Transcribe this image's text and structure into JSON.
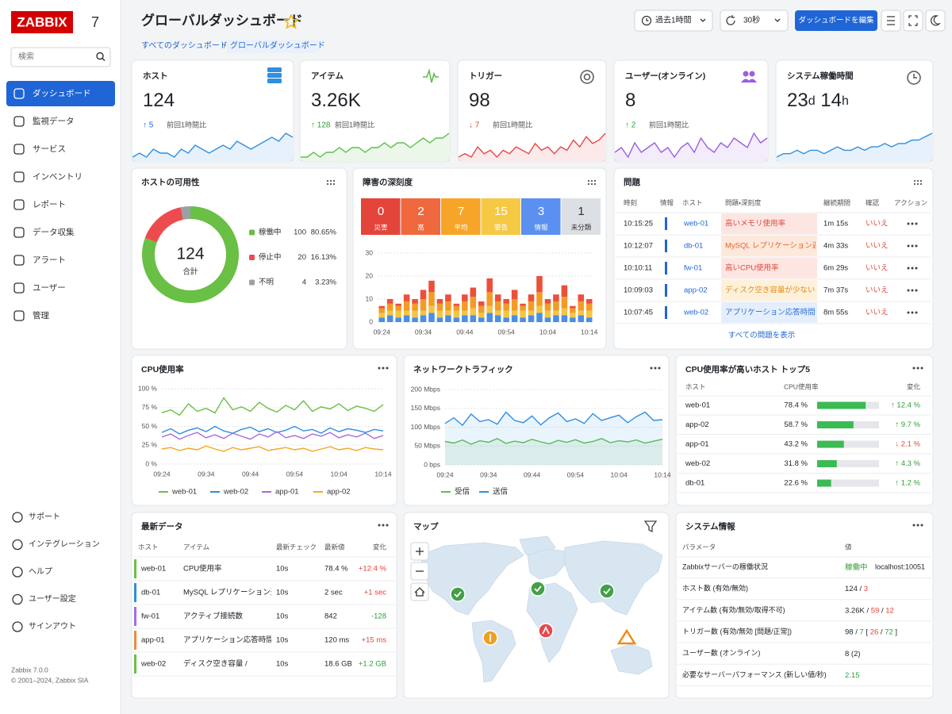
{
  "sidebar": {
    "logo": "ZABBIX",
    "version_badge": "7",
    "search_placeholder": "検索",
    "nav": [
      "ダッシュボード",
      "監視データ",
      "サービス",
      "インベントリ",
      "レポート",
      "データ収集",
      "アラート",
      "ユーザー",
      "管理"
    ],
    "active": 0,
    "bottom_nav": [
      "サポート",
      "インテグレーション",
      "ヘルプ",
      "ユーザー設定",
      "サインアウト"
    ],
    "footer": [
      "Zabbix 7.0.0",
      "© 2001–2024, Zabbix SIA"
    ]
  },
  "header": {
    "title": "グローバルダッシュボード",
    "breadcrumbs": [
      "すべてのダッシュボード",
      "グローバルダッシュボード"
    ],
    "breadcrumb_separator": "/",
    "time_range": "過去1時間",
    "refresh": "30秒",
    "edit_button": "ダッシュボードを編集"
  },
  "stats": [
    {
      "title": "ホスト",
      "value_parts": [
        {
          "text": "124"
        }
      ],
      "delta": "↑ 5",
      "delta_color": "#1f65d6",
      "note": "前回1時間比",
      "color": "#2f8fe0",
      "spark": [
        4,
        5,
        4,
        6,
        5,
        5,
        4,
        6,
        5,
        7,
        6,
        5,
        6,
        7,
        6,
        8,
        7,
        6,
        7,
        8,
        9,
        8,
        10,
        9
      ]
    },
    {
      "title": "アイテム",
      "value_parts": [
        {
          "text": "3.26K"
        }
      ],
      "delta": "↑ 128",
      "delta_color": "#2e9e3a",
      "note": "前回1時間比",
      "color": "#5cbf4a",
      "spark": [
        3,
        3,
        4,
        3,
        4,
        4,
        5,
        4,
        5,
        5,
        4,
        5,
        5,
        6,
        5,
        6,
        6,
        5,
        6,
        7,
        6,
        7,
        7,
        8
      ]
    },
    {
      "title": "トリガー",
      "value_parts": [
        {
          "text": "98"
        }
      ],
      "delta": "↓ 7",
      "delta_color": "#e0453a",
      "note": "前回1時間比",
      "color": "#e8474a",
      "spark": [
        3,
        4,
        3,
        6,
        4,
        5,
        3,
        5,
        4,
        6,
        5,
        4,
        7,
        5,
        6,
        4,
        6,
        5,
        8,
        6,
        9,
        7,
        8,
        10
      ]
    },
    {
      "title": "ユーザー(オンライン)",
      "value_parts": [
        {
          "text": "8"
        }
      ],
      "delta": "↑ 2",
      "delta_color": "#2e9e3a",
      "note": "前回1時間比",
      "color": "#9b5fe0",
      "spark": [
        4,
        5,
        3,
        6,
        4,
        5,
        6,
        4,
        5,
        3,
        5,
        6,
        4,
        7,
        5,
        4,
        6,
        5,
        7,
        6,
        5,
        8,
        6,
        7
      ]
    },
    {
      "title": "システム稼働時間",
      "value_parts": [
        {
          "text": "23"
        },
        {
          "text": "d",
          "small": true
        },
        {
          "text": " 14"
        },
        {
          "text": "h",
          "small": true
        }
      ],
      "color": "#2f8fe0",
      "spark": [
        3,
        4,
        4,
        5,
        4,
        5,
        5,
        4,
        5,
        6,
        5,
        5,
        6,
        5,
        6,
        6,
        7,
        6,
        7,
        7,
        8,
        8,
        9,
        10
      ]
    }
  ],
  "availability": {
    "title": "ホストの可用性",
    "total": "124",
    "total_label": "合計",
    "items": [
      {
        "label": "稼働中",
        "count": 100,
        "percent": "80.65%",
        "color": "#6abf45"
      },
      {
        "label": "停止中",
        "count": 20,
        "percent": "16.13%",
        "color": "#ee4b4f"
      },
      {
        "label": "不明",
        "count": 4,
        "percent": "3.23%",
        "color": "#9aa0a6"
      }
    ]
  },
  "severity": {
    "title": "障害の深刻度",
    "levels": [
      {
        "count": 0,
        "label": "災害",
        "color": "#e3453b"
      },
      {
        "count": 2,
        "label": "高",
        "color": "#f0683d"
      },
      {
        "count": 7,
        "label": "平均",
        "color": "#f7a528"
      },
      {
        "count": 15,
        "label": "警告",
        "color": "#f6c945"
      },
      {
        "count": 3,
        "label": "情報",
        "color": "#5b8ff0"
      },
      {
        "count": 1,
        "label": "未分類",
        "color": "#dcdfe4"
      }
    ],
    "chart": {
      "type": "bar",
      "categories": [
        "09:24",
        null,
        null,
        null,
        null,
        "09:34",
        null,
        null,
        null,
        null,
        "09:44",
        null,
        null,
        null,
        null,
        "09:54",
        null,
        null,
        null,
        null,
        "10:04",
        null,
        null,
        null,
        null,
        "10:14"
      ],
      "series": [
        {
          "color": "#4a8fe6",
          "values": [
            2,
            3,
            2,
            3,
            2,
            3,
            4,
            2,
            3,
            2,
            3,
            3,
            2,
            4,
            3,
            2,
            3,
            2,
            3,
            4,
            2,
            3,
            3,
            2,
            3,
            2
          ]
        },
        {
          "color": "#f5c542",
          "values": [
            2,
            2,
            3,
            2,
            3,
            2,
            3,
            3,
            2,
            3,
            2,
            3,
            2,
            3,
            2,
            3,
            2,
            3,
            2,
            3,
            3,
            2,
            3,
            2,
            2,
            3
          ]
        },
        {
          "color": "#f59a26",
          "values": [
            2,
            3,
            2,
            4,
            3,
            5,
            6,
            3,
            4,
            2,
            4,
            5,
            3,
            6,
            4,
            3,
            5,
            2,
            4,
            6,
            3,
            4,
            5,
            2,
            4,
            3
          ]
        },
        {
          "color": "#ec4f3a",
          "values": [
            1,
            2,
            1,
            3,
            2,
            4,
            5,
            2,
            3,
            1,
            3,
            4,
            2,
            6,
            3,
            2,
            4,
            1,
            3,
            7,
            2,
            3,
            5,
            1,
            3,
            2
          ]
        }
      ],
      "ylim": [
        0,
        30
      ],
      "yticks": [
        0,
        10,
        20,
        30
      ]
    }
  },
  "problems": {
    "title": "問題",
    "columns": [
      "時刻",
      "情報",
      "ホスト",
      "問題・深刻度",
      "継続期間",
      "確認",
      "アクション"
    ],
    "rows": [
      {
        "time": "10:15:25",
        "host": "web-01",
        "problem": "高いメモリ使用率",
        "bg": "#fde6e2",
        "color": "#e0453a",
        "duration": "1m 15s",
        "ack": "いいえ"
      },
      {
        "time": "10:12:07",
        "host": "db-01",
        "problem": "MySQL レプリケーション遅延",
        "bg": "#fde9dc",
        "color": "#e8642c",
        "duration": "4m 33s",
        "ack": "いいえ"
      },
      {
        "time": "10:10:11",
        "host": "fw-01",
        "problem": "高いCPU使用率",
        "bg": "#fde6e2",
        "color": "#e0453a",
        "duration": "6m 29s",
        "ack": "いいえ"
      },
      {
        "time": "10:09:03",
        "host": "app-02",
        "problem": "ディスク空き容量が少ない /",
        "bg": "#fef1dc",
        "color": "#e58a12",
        "duration": "7m 37s",
        "ack": "いいえ"
      },
      {
        "time": "10:07:45",
        "host": "web-02",
        "problem": "アプリケーション応答時間",
        "bg": "#e4eefc",
        "color": "#2f6fd6",
        "duration": "8m 55s",
        "ack": "いいえ"
      }
    ],
    "footer": "すべての問題を表示"
  },
  "cpu": {
    "title": "CPU使用率",
    "chart": {
      "type": "line",
      "categories": [
        "09:24",
        null,
        null,
        null,
        null,
        "09:34",
        null,
        null,
        null,
        null,
        "09:44",
        null,
        null,
        null,
        null,
        "09:54",
        null,
        null,
        null,
        null,
        "10:04",
        null,
        null,
        null,
        null,
        "10:14"
      ],
      "series": [
        {
          "name": "web-01",
          "color": "#6abf45",
          "values": [
            68,
            72,
            65,
            80,
            70,
            74,
            68,
            88,
            72,
            76,
            70,
            82,
            74,
            69,
            78,
            72,
            84,
            70,
            76,
            73,
            80,
            71,
            77,
            74,
            70,
            79
          ]
        },
        {
          "name": "web-02",
          "color": "#2f8fe0",
          "values": [
            42,
            47,
            40,
            45,
            48,
            43,
            50,
            44,
            41,
            46,
            49,
            43,
            47,
            42,
            45,
            50,
            44,
            46,
            41,
            48,
            43,
            47,
            45,
            42,
            46,
            44
          ]
        },
        {
          "name": "app-01",
          "color": "#a66be0",
          "values": [
            36,
            40,
            33,
            38,
            42,
            35,
            39,
            34,
            41,
            37,
            33,
            40,
            36,
            43,
            35,
            38,
            34,
            40,
            37,
            42,
            35,
            39,
            36,
            41,
            34,
            38
          ]
        },
        {
          "name": "app-02",
          "color": "#f5a623",
          "values": [
            20,
            22,
            18,
            21,
            19,
            24,
            20,
            17,
            22,
            19,
            21,
            23,
            18,
            20,
            22,
            19,
            21,
            17,
            20,
            23,
            19,
            21,
            18,
            22,
            20,
            19
          ]
        }
      ],
      "ylim": [
        0,
        100
      ],
      "yticks": [
        {
          "value": 0,
          "label": "0 %"
        },
        {
          "value": 25,
          "label": "25 %"
        },
        {
          "value": 50,
          "label": "50 %"
        },
        {
          "value": 75,
          "label": "75 %"
        },
        {
          "value": 100,
          "label": "100 %"
        }
      ],
      "grid": true
    }
  },
  "network": {
    "title": "ネットワークトラフィック",
    "chart": {
      "type": "line",
      "area": true,
      "categories": [
        "09:24",
        null,
        null,
        null,
        null,
        "09:34",
        null,
        null,
        null,
        null,
        "09:44",
        null,
        null,
        null,
        null,
        "09:54",
        null,
        null,
        null,
        null,
        "10:04",
        null,
        null,
        null,
        null,
        "10:14"
      ],
      "series": [
        {
          "name": "受信",
          "color": "#5cbf4a",
          "values": [
            62,
            58,
            66,
            55,
            64,
            60,
            70,
            57,
            63,
            59,
            68,
            61,
            56,
            65,
            60,
            67,
            58,
            62,
            70,
            59,
            64,
            61,
            66,
            58,
            63,
            68
          ]
        },
        {
          "name": "送信",
          "color": "#2f8fe0",
          "values": [
            110,
            125,
            105,
            135,
            115,
            120,
            108,
            140,
            118,
            112,
            130,
            106,
            125,
            138,
            115,
            122,
            110,
            136,
            118,
            125,
            132,
            112,
            128,
            140,
            118,
            120
          ]
        }
      ],
      "ylim": [
        0,
        200
      ],
      "yticks": [
        {
          "value": 0,
          "label": "0 bps"
        },
        {
          "value": 50,
          "label": "50 Mbps"
        },
        {
          "value": 100,
          "label": "100 Mbps"
        },
        {
          "value": 150,
          "label": "150 Mbps"
        },
        {
          "value": 200,
          "label": "200 Mbps"
        }
      ],
      "grid": true
    }
  },
  "top_hosts": {
    "title": "CPU使用率が高いホスト トップ5",
    "columns": [
      "ホスト",
      "CPU使用率",
      "変化"
    ],
    "xlim": [
      0,
      100
    ],
    "bar_color": "#3cba54",
    "rows": [
      {
        "host": "web-01",
        "value": 78.4,
        "value_label": "78.4 %",
        "change": "↑ 12.4 %",
        "change_color": "#2e9e3a"
      },
      {
        "host": "app-02",
        "value": 58.7,
        "value_label": "58.7 %",
        "change": "↑ 9.7 %",
        "change_color": "#2e9e3a"
      },
      {
        "host": "app-01",
        "value": 43.2,
        "value_label": "43.2 %",
        "change": "↓ 2.1 %",
        "change_color": "#e0453a"
      },
      {
        "host": "web-02",
        "value": 31.8,
        "value_label": "31.8 %",
        "change": "↑ 4.3 %",
        "change_color": "#2e9e3a"
      },
      {
        "host": "db-01",
        "value": 22.6,
        "value_label": "22.6 %",
        "change": "↑ 1.2 %",
        "change_color": "#2e9e3a"
      }
    ]
  },
  "latest": {
    "title": "最新データ",
    "columns": [
      "ホスト",
      "アイテム",
      "最新チェック",
      "最新値",
      "変化"
    ],
    "rows": [
      {
        "host": "web-01",
        "item": "CPU使用率",
        "check": "10s",
        "value": "78.4 %",
        "change": "+12.4 %",
        "color": "#6abf45",
        "change_color": "#e0453a"
      },
      {
        "host": "db-01",
        "item": "MySQL レプリケーション遅延",
        "check": "10s",
        "value": "2 sec",
        "change": "+1 sec",
        "color": "#2f8fe0",
        "change_color": "#e0453a"
      },
      {
        "host": "fw-01",
        "item": "アクティブ接続数",
        "check": "10s",
        "value": "842",
        "change": "-128",
        "color": "#a66be0",
        "change_color": "#2e9e3a"
      },
      {
        "host": "app-01",
        "item": "アプリケーション応答時間",
        "check": "10s",
        "value": "120 ms",
        "change": "+15 ms",
        "color": "#f08a3c",
        "change_color": "#e0453a"
      },
      {
        "host": "web-02",
        "item": "ディスク空き容量 /",
        "check": "10s",
        "value": "18.6 GB",
        "change": "+1.2 GB",
        "color": "#6abf45",
        "change_color": "#2e9e3a"
      }
    ]
  },
  "map": {
    "title": "マップ"
  },
  "system_info": {
    "title": "システム情報",
    "columns": [
      "パラメータ",
      "値"
    ],
    "rows": [
      {
        "param": "Zabbixサーバーの稼働状況",
        "value": [
          {
            "text": "稼働中",
            "color": "#2e9e3a"
          }
        ],
        "address": "localhost:10051"
      },
      {
        "param": "ホスト数 (有効/無効)",
        "value": [
          {
            "text": "124"
          },
          {
            "text": " / "
          },
          {
            "text": "3",
            "color": "#e0453a"
          }
        ]
      },
      {
        "param": "アイテム数 (有効/無効/取得不可)",
        "value": [
          {
            "text": "3.26K"
          },
          {
            "text": " / "
          },
          {
            "text": "59",
            "color": "#e0453a"
          },
          {
            "text": " / "
          },
          {
            "text": "12",
            "color": "#e0453a"
          }
        ]
      },
      {
        "param": "トリガー数 (有効/無効 [問題/正常])",
        "value": [
          {
            "text": "98"
          },
          {
            "text": " / "
          },
          {
            "text": "7",
            "color": "#2e9e3a"
          },
          {
            "text": " [ "
          },
          {
            "text": "26",
            "color": "#e0453a"
          },
          {
            "text": " / "
          },
          {
            "text": "72",
            "color": "#2e9e3a"
          },
          {
            "text": " ]"
          }
        ]
      },
      {
        "param": "ユーザー数 (オンライン)",
        "value": [
          {
            "text": "8 (2)"
          }
        ]
      },
      {
        "param": "必要なサーバーパフォーマンス (新しい値/秒)",
        "value": [
          {
            "text": "2.15",
            "color": "#2e9e3a"
          }
        ]
      }
    ]
  }
}
